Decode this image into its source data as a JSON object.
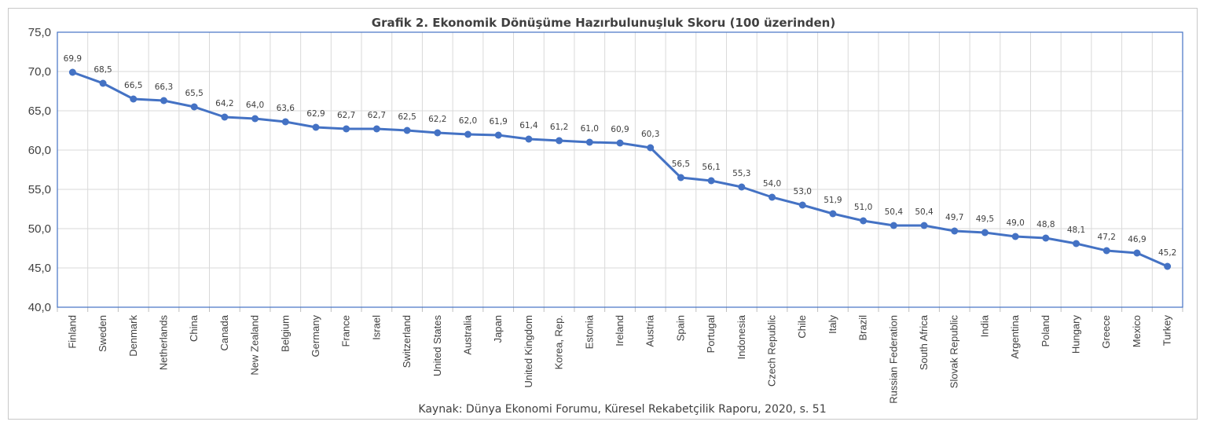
{
  "chart_data": {
    "type": "line",
    "title": "Grafik 2. Ekonomik Dönüşüme Hazırbulunuşluk Skoru (100 üzerinden)",
    "source": "Kaynak: Dünya Ekonomi Forumu,  Küresel Rekabetçilik Raporu, 2020, s. 51",
    "categories": [
      "Finland",
      "Sweden",
      "Denmark",
      "Netherlands",
      "China",
      "Canada",
      "New Zealand",
      "Belgium",
      "Germany",
      "France",
      "Israel",
      "Switzerland",
      "United States",
      "Australia",
      "Japan",
      "United Kingdom",
      "Korea, Rep.",
      "Estonia",
      "Ireland",
      "Austria",
      "Spain",
      "Portugal",
      "Indonesia",
      "Czech Republic",
      "Chile",
      "Italy",
      "Brazil",
      "Russian Federation",
      "South Africa",
      "Slovak Republic",
      "India",
      "Argentina",
      "Poland",
      "Hungary",
      "Greece",
      "Mexico",
      "Turkey"
    ],
    "values": [
      69.9,
      68.5,
      66.5,
      66.3,
      65.5,
      64.2,
      64.0,
      63.6,
      62.9,
      62.7,
      62.7,
      62.5,
      62.2,
      62.0,
      61.9,
      61.4,
      61.2,
      61.0,
      60.9,
      60.3,
      56.5,
      56.1,
      55.3,
      54.0,
      53.0,
      51.9,
      51.0,
      50.4,
      50.4,
      49.7,
      49.5,
      49.0,
      48.8,
      48.1,
      47.2,
      46.9,
      45.2
    ],
    "data_labels": [
      "69,9",
      "68,5",
      "66,5",
      "66,3",
      "65,5",
      "64,2",
      "64,0",
      "63,6",
      "62,9",
      "62,7",
      "62,7",
      "62,5",
      "62,2",
      "62,0",
      "61,9",
      "61,4",
      "61,2",
      "61,0",
      "60,9",
      "60,3",
      "56,5",
      "56,1",
      "55,3",
      "54,0",
      "53,0",
      "51,9",
      "51,0",
      "50,4",
      "50,4",
      "49,7",
      "49,5",
      "49,0",
      "48,8",
      "48,1",
      "47,2",
      "46,9",
      "45,2"
    ],
    "ylim": [
      40,
      75
    ],
    "yticks": [
      40,
      45,
      50,
      55,
      60,
      65,
      70,
      75
    ],
    "ytick_labels": [
      "40,0",
      "45,0",
      "50,0",
      "55,0",
      "60,0",
      "65,0",
      "70,0",
      "75,0"
    ],
    "grid": true,
    "legend": "none",
    "colors": {
      "series": "#4472c4",
      "grid": "#d9d9d9",
      "text": "#404040"
    }
  }
}
